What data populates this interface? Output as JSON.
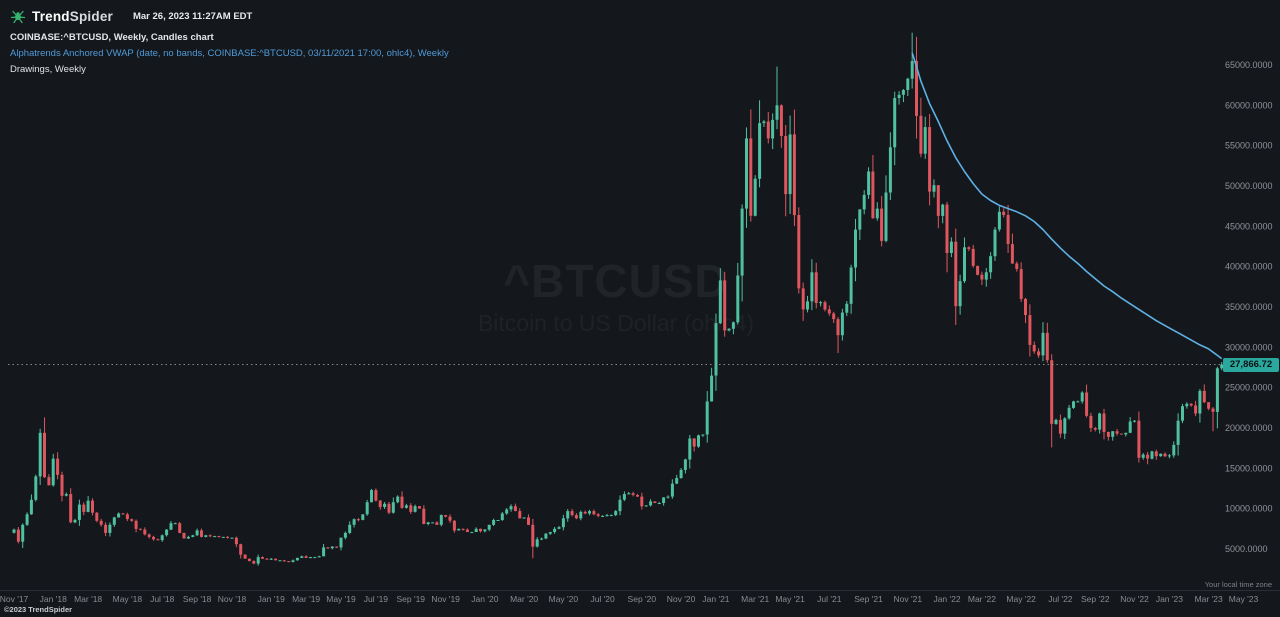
{
  "meta": {
    "brand_trend": "Trend",
    "brand_spider": "Spider",
    "timestamp": "Mar 26, 2023 11:27AM EDT",
    "copyright": "©2023 TrendSpider",
    "timezone_note": "Your local time zone"
  },
  "chart_header": {
    "symbol_line": "COINBASE:^BTCUSD, Weekly, Candles chart",
    "indicator_line": "Alphatrends Anchored VWAP (date, no bands, COINBASE:^BTCUSD, 03/11/2021 17:00, ohlc4), Weekly",
    "drawings_line": "Drawings, Weekly"
  },
  "watermark": {
    "title": "^BTCUSD",
    "subtitle": "Bitcoin to US Dollar (ohlc4)"
  },
  "price_scale": {
    "current_price_label": "27,866.72"
  },
  "colors": {
    "background": "#14181c",
    "candle_up": "#4fc0a0",
    "candle_down": "#e0565f",
    "vwap_line": "#5fb0e5",
    "price_badge_bg": "#2aa89e",
    "price_badge_text": "#0c1114",
    "brand_green": "#35b56f",
    "axis_text": "#90949a",
    "dotted_line": "#9b9ea4"
  },
  "chart_data": {
    "type": "candlestick",
    "symbol": "COINBASE:^BTCUSD",
    "interval": "Weekly",
    "title": "^BTCUSD",
    "subtitle": "Bitcoin to US Dollar (ohlc4)",
    "legend": [
      "Candles",
      "Alphatrends Anchored VWAP"
    ],
    "ylim": [
      0,
      69500
    ],
    "grid": false,
    "current_price": 27866.72,
    "y_ticks": [
      {
        "value": 65000,
        "label": "65000.0000"
      },
      {
        "value": 60000,
        "label": "60000.0000"
      },
      {
        "value": 55000,
        "label": "55000.0000"
      },
      {
        "value": 50000,
        "label": "50000.0000"
      },
      {
        "value": 45000,
        "label": "45000.0000"
      },
      {
        "value": 40000,
        "label": "40000.0000"
      },
      {
        "value": 35000,
        "label": "35000.0000"
      },
      {
        "value": 30000,
        "label": "30000.0000"
      },
      {
        "value": 25000,
        "label": "25000.0000"
      },
      {
        "value": 20000,
        "label": "20000.0000"
      },
      {
        "value": 15000,
        "label": "15000.0000"
      },
      {
        "value": 10000,
        "label": "10000.0000"
      },
      {
        "value": 5000,
        "label": "5000.0000"
      }
    ],
    "x_ticks": [
      {
        "label": "Nov '17",
        "week": 0
      },
      {
        "label": "Jan '18",
        "week": 9
      },
      {
        "label": "Mar '18",
        "week": 17
      },
      {
        "label": "May '18",
        "week": 26
      },
      {
        "label": "Jul '18",
        "week": 34
      },
      {
        "label": "Sep '18",
        "week": 42
      },
      {
        "label": "Nov '18",
        "week": 50
      },
      {
        "label": "Jan '19",
        "week": 59
      },
      {
        "label": "Mar '19",
        "week": 67
      },
      {
        "label": "May '19",
        "week": 75
      },
      {
        "label": "Jul '19",
        "week": 83
      },
      {
        "label": "Sep '19",
        "week": 91
      },
      {
        "label": "Nov '19",
        "week": 99
      },
      {
        "label": "Jan '20",
        "week": 108
      },
      {
        "label": "Mar '20",
        "week": 117
      },
      {
        "label": "May '20",
        "week": 126
      },
      {
        "label": "Jul '20",
        "week": 135
      },
      {
        "label": "Sep '20",
        "week": 144
      },
      {
        "label": "Nov '20",
        "week": 153
      },
      {
        "label": "Jan '21",
        "week": 161
      },
      {
        "label": "Mar '21",
        "week": 170
      },
      {
        "label": "May '21",
        "week": 178
      },
      {
        "label": "Jul '21",
        "week": 187
      },
      {
        "label": "Sep '21",
        "week": 196
      },
      {
        "label": "Nov '21",
        "week": 205
      },
      {
        "label": "Jan '22",
        "week": 214
      },
      {
        "label": "Mar '22",
        "week": 222
      },
      {
        "label": "May '22",
        "week": 231
      },
      {
        "label": "Jul '22",
        "week": 240
      },
      {
        "label": "Sep '22",
        "week": 248
      },
      {
        "label": "Nov '22",
        "week": 257
      },
      {
        "label": "Jan '23",
        "week": 265
      },
      {
        "label": "Mar '23",
        "week": 274
      },
      {
        "label": "May '23",
        "week": 282
      }
    ],
    "first_open": 7000,
    "closes": [
      7400,
      5900,
      8000,
      9300,
      11100,
      14000,
      19400,
      13900,
      12900,
      16200,
      14200,
      11600,
      11800,
      8300,
      8600,
      10500,
      9600,
      11000,
      9500,
      8500,
      8000,
      7000,
      8000,
      8900,
      9400,
      9300,
      8700,
      8500,
      7500,
      7400,
      6800,
      6500,
      6200,
      6100,
      6700,
      7400,
      8200,
      8200,
      7000,
      6300,
      6500,
      6700,
      7300,
      6500,
      6700,
      6600,
      6600,
      6500,
      6500,
      6400,
      6400,
      5600,
      4300,
      3800,
      3500,
      3200,
      4000,
      3800,
      3700,
      3800,
      3600,
      3600,
      3500,
      3400,
      3600,
      3900,
      4100,
      3900,
      4000,
      4000,
      4100,
      5200,
      5100,
      5300,
      5200,
      6400,
      7000,
      8000,
      8700,
      8600,
      9300,
      10800,
      12300,
      11000,
      10200,
      10600,
      9500,
      10800,
      11500,
      10100,
      10400,
      9600,
      10300,
      10000,
      8100,
      8300,
      8300,
      8000,
      9200,
      9000,
      8500,
      7300,
      7500,
      7400,
      7100,
      7100,
      7500,
      7200,
      7400,
      8000,
      8600,
      8600,
      9400,
      9900,
      10300,
      9700,
      8800,
      8900,
      8000,
      5300,
      6200,
      6300,
      6900,
      7100,
      7500,
      7700,
      8800,
      9700,
      9200,
      8800,
      9600,
      9400,
      9700,
      9300,
      9100,
      9100,
      9200,
      9200,
      9700,
      11100,
      11800,
      11900,
      11700,
      11500,
      10300,
      10400,
      10900,
      10700,
      10700,
      11400,
      11500,
      13100,
      13800,
      14800,
      16100,
      18700,
      17700,
      19100,
      19200,
      23300,
      26500,
      33000,
      38300,
      32100,
      32300,
      33100,
      38900,
      47200,
      55900,
      46300,
      50900,
      57800,
      58000,
      55900,
      58200,
      60000,
      56200,
      49000,
      56400,
      46400,
      37300,
      34700,
      35700,
      39300,
      35500,
      35600,
      34700,
      34200,
      33500,
      31500,
      34300,
      35400,
      39900,
      44600,
      47100,
      48900,
      51800,
      46000,
      47200,
      43200,
      49200,
      54800,
      60900,
      61300,
      61900,
      63300,
      65500,
      58700,
      54000,
      57300,
      49300,
      50100,
      46300,
      47700,
      41700,
      43100,
      35100,
      38200,
      42400,
      42200,
      40100,
      39000,
      38400,
      39300,
      41300,
      44600,
      46800,
      46400,
      42800,
      40400,
      39700,
      36000,
      34000,
      30300,
      29500,
      29000,
      31800,
      28400,
      20500,
      21000,
      19300,
      21200,
      22500,
      23300,
      23300,
      24400,
      21500,
      20000,
      19800,
      21800,
      19500,
      18900,
      19600,
      19300,
      19200,
      19400,
      20800,
      20900,
      16300,
      16700,
      16200,
      17100,
      16500,
      16800,
      16500,
      16600,
      17900,
      20900,
      22700,
      23000,
      22800,
      21800,
      24600,
      23200,
      22400,
      22000,
      27400,
      27866.72
    ],
    "wick_overrides": {
      "6": {
        "high": 19900
      },
      "119": {
        "low": 3850
      },
      "175": {
        "high": 64800
      },
      "189": {
        "low": 29300
      },
      "206": {
        "high": 69000
      },
      "238": {
        "low": 17600
      },
      "260": {
        "low": 15500
      },
      "275": {
        "low": 19600
      }
    },
    "vwap": {
      "label": "Alphatrends Anchored VWAP",
      "anchor": "03/11/2021 17:00",
      "points": [
        [
          206,
          66500
        ],
        [
          207,
          64800
        ],
        [
          208,
          63000
        ],
        [
          210,
          60200
        ],
        [
          212,
          58000
        ],
        [
          214,
          55600
        ],
        [
          216,
          53500
        ],
        [
          218,
          51800
        ],
        [
          220,
          50300
        ],
        [
          222,
          49000
        ],
        [
          224,
          48200
        ],
        [
          226,
          47600
        ],
        [
          228,
          47200
        ],
        [
          230,
          46800
        ],
        [
          232,
          46300
        ],
        [
          234,
          45600
        ],
        [
          236,
          44600
        ],
        [
          238,
          43400
        ],
        [
          240,
          42300
        ],
        [
          242,
          41300
        ],
        [
          244,
          40400
        ],
        [
          246,
          39400
        ],
        [
          248,
          38500
        ],
        [
          250,
          37600
        ],
        [
          252,
          36900
        ],
        [
          254,
          36100
        ],
        [
          256,
          35400
        ],
        [
          258,
          34700
        ],
        [
          260,
          34000
        ],
        [
          262,
          33300
        ],
        [
          264,
          32700
        ],
        [
          266,
          32100
        ],
        [
          268,
          31500
        ],
        [
          270,
          30900
        ],
        [
          272,
          30300
        ],
        [
          274,
          29800
        ],
        [
          275,
          29400
        ],
        [
          276,
          29000
        ],
        [
          277,
          28600
        ]
      ]
    }
  }
}
